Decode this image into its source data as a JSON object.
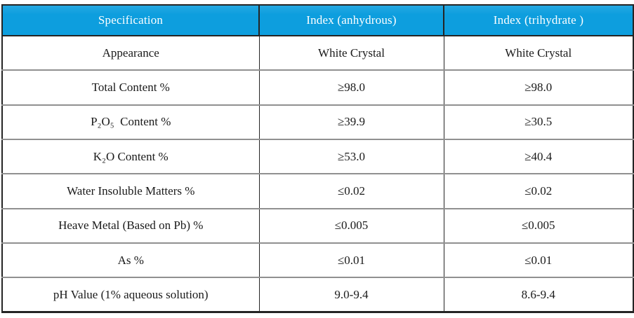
{
  "colors": {
    "header_bg": "#0d9ede",
    "header_text": "#ffffff",
    "body_text": "#1a1a1a",
    "border_dark": "#242424",
    "border_light": "#909090"
  },
  "table": {
    "columns": [
      {
        "label": "Specification"
      },
      {
        "label": "Index (anhydrous)"
      },
      {
        "label": "Index (trihydrate )"
      }
    ],
    "rows": [
      {
        "cells": [
          "Appearance",
          "White Crystal",
          "White Crystal"
        ]
      },
      {
        "cells": [
          "Total Content %",
          "≥98.0",
          "≥98.0"
        ]
      },
      {
        "cells": [
          "P₂O₅  Content %",
          "≥39.9",
          "≥30.5"
        ]
      },
      {
        "cells": [
          "K₂O Content %",
          "≥53.0",
          "≥40.4"
        ]
      },
      {
        "cells": [
          "Water Insoluble Matters %",
          "≤0.02",
          "≤0.02"
        ]
      },
      {
        "cells": [
          "Heave Metal (Based on Pb) %",
          "≤0.005",
          "≤0.005"
        ]
      },
      {
        "cells": [
          "As %",
          "≤0.01",
          "≤0.01"
        ]
      },
      {
        "cells": [
          "pH Value (1% aqueous solution)",
          "9.0-9.4",
          "8.6-9.4"
        ]
      }
    ]
  }
}
